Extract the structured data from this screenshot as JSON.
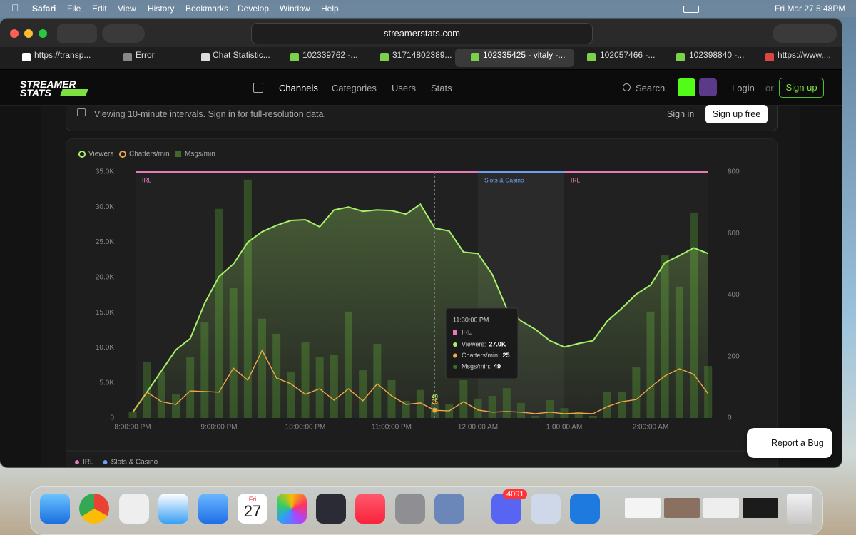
{
  "menubar": {
    "app": "Safari",
    "items": [
      "File",
      "Edit",
      "View",
      "History",
      "Bookmarks",
      "Develop",
      "Window",
      "Help"
    ],
    "date": "Fri Mar 27",
    "time": "5:48PM"
  },
  "browser": {
    "address": "streamerstats.com",
    "tabs": [
      "https://transp...",
      "Error",
      "Chat Statistic...",
      "102339762 -...",
      "31714802389...",
      "102335425 - vitaly -...",
      "102057466 -...",
      "102398840 -...",
      "https://www...."
    ]
  },
  "site": {
    "logo": [
      "STREAMER",
      "STATS"
    ],
    "nav": [
      "Channels",
      "Categories",
      "Users",
      "Stats"
    ],
    "search": "Search",
    "login": "Login",
    "or": "or",
    "signup": "Sign up",
    "banner": {
      "text": "Viewing 10-minute intervals. Sign in for full-resolution data.",
      "signin": "Sign in",
      "signup": "Sign up free"
    },
    "report": "Report a Bug"
  },
  "chart_data": {
    "type": "combo",
    "x": [
      "8:00:00 PM",
      "8:10:00 PM",
      "8:20:00 PM",
      "8:30:00 PM",
      "8:40:00 PM",
      "8:50:00 PM",
      "9:00:00 PM",
      "9:10:00 PM",
      "9:20:00 PM",
      "9:30:00 PM",
      "9:40:00 PM",
      "9:50:00 PM",
      "10:00:00 PM",
      "10:10:00 PM",
      "10:20:00 PM",
      "10:30:00 PM",
      "10:40:00 PM",
      "10:50:00 PM",
      "11:00:00 PM",
      "11:10:00 PM",
      "11:20:00 PM",
      "11:30:00 PM",
      "11:40:00 PM",
      "11:50:00 PM",
      "12:00:00 AM",
      "12:10:00 AM",
      "12:20:00 AM",
      "12:30:00 AM",
      "12:40:00 AM",
      "12:50:00 AM",
      "1:00:00 AM",
      "1:10:00 AM",
      "1:20:00 AM",
      "1:30:00 AM",
      "1:40:00 AM",
      "1:50:00 AM",
      "2:00:00 AM",
      "2:10:00 AM",
      "2:20:00 AM",
      "2:30:00 AM",
      "2:40:00 AM"
    ],
    "xticks": [
      "8:00:00 PM",
      "9:00:00 PM",
      "10:00:00 PM",
      "11:00:00 PM",
      "12:00:00 AM",
      "1:00:00 AM",
      "2:00:00 AM"
    ],
    "ylim": [
      0,
      35000
    ],
    "yticks": [
      0,
      {
        "value": 5000,
        "label": "5.0K"
      },
      {
        "value": 10000,
        "label": "10.0K"
      },
      {
        "value": 15000,
        "label": "15.0K"
      },
      {
        "value": 20000,
        "label": "20.0K"
      },
      {
        "value": 25000,
        "label": "25.0K"
      },
      {
        "value": 30000,
        "label": "30.0K"
      },
      {
        "value": 35000,
        "label": "35.0K"
      }
    ],
    "y2lim": [
      0,
      800
    ],
    "y2ticks": [
      0,
      200,
      400,
      600,
      800
    ],
    "grid": false,
    "series": [
      {
        "name": "Viewers",
        "type": "area",
        "color": "#a6f06a",
        "values": [
          800,
          3700,
          6700,
          9700,
          11300,
          16300,
          20100,
          21900,
          25000,
          26500,
          27400,
          28100,
          28200,
          27200,
          29600,
          30000,
          29400,
          29600,
          29500,
          29000,
          30400,
          27000,
          26600,
          23600,
          23400,
          20400,
          15600,
          13800,
          12600,
          11000,
          10100,
          10600,
          11000,
          13800,
          15600,
          17600,
          18900,
          22100,
          23100,
          24200,
          23400
        ]
      },
      {
        "name": "Chatters/min",
        "type": "line",
        "axis": "y2",
        "color": "#f0a848",
        "values": [
          19,
          84,
          53,
          44,
          88,
          86,
          84,
          162,
          123,
          220,
          130,
          111,
          77,
          95,
          58,
          95,
          56,
          111,
          72,
          44,
          49,
          25,
          23,
          53,
          26,
          19,
          21,
          19,
          14,
          19,
          14,
          16,
          14,
          37,
          53,
          60,
          100,
          137,
          160,
          142,
          79
        ]
      },
      {
        "name": "Msgs/min",
        "type": "bar",
        "axis": "y2",
        "color": "#3f6b2a",
        "values": [
          21,
          181,
          151,
          77,
          197,
          311,
          680,
          422,
          775,
          323,
          274,
          151,
          246,
          197,
          206,
          346,
          155,
          241,
          123,
          56,
          91,
          49,
          44,
          123,
          63,
          72,
          97,
          49,
          7,
          58,
          32,
          21,
          7,
          84,
          84,
          165,
          346,
          531,
          427,
          668,
          169
        ]
      }
    ],
    "bands": [
      {
        "label": "IRL",
        "start": "8:00:00 PM",
        "end": "12:00:00 AM",
        "color": "#e47bb8"
      },
      {
        "label": "Slots & Casino",
        "start": "12:00:00 AM",
        "end": "1:00:00 AM",
        "color": "#6ea0f0"
      },
      {
        "label": "IRL",
        "start": "1:00:00 AM",
        "end": "2:40:00 AM",
        "color": "#e47bb8"
      }
    ],
    "categories_legend": [
      {
        "name": "IRL",
        "color": "#e47bb8"
      },
      {
        "name": "Slots & Casino",
        "color": "#6ea0f0"
      }
    ],
    "tooltip": {
      "x": "11:30:00 PM",
      "category": "IRL",
      "rows": [
        {
          "label": "Viewers:",
          "value": "27.0K"
        },
        {
          "label": "Chatters/min:",
          "value": "25"
        },
        {
          "label": "Msgs/min:",
          "value": "49"
        }
      ],
      "point_labels": [
        "49",
        "25"
      ]
    }
  },
  "dock": {
    "calendar_day": "Fri",
    "calendar_date": "27",
    "badge": "4091"
  }
}
